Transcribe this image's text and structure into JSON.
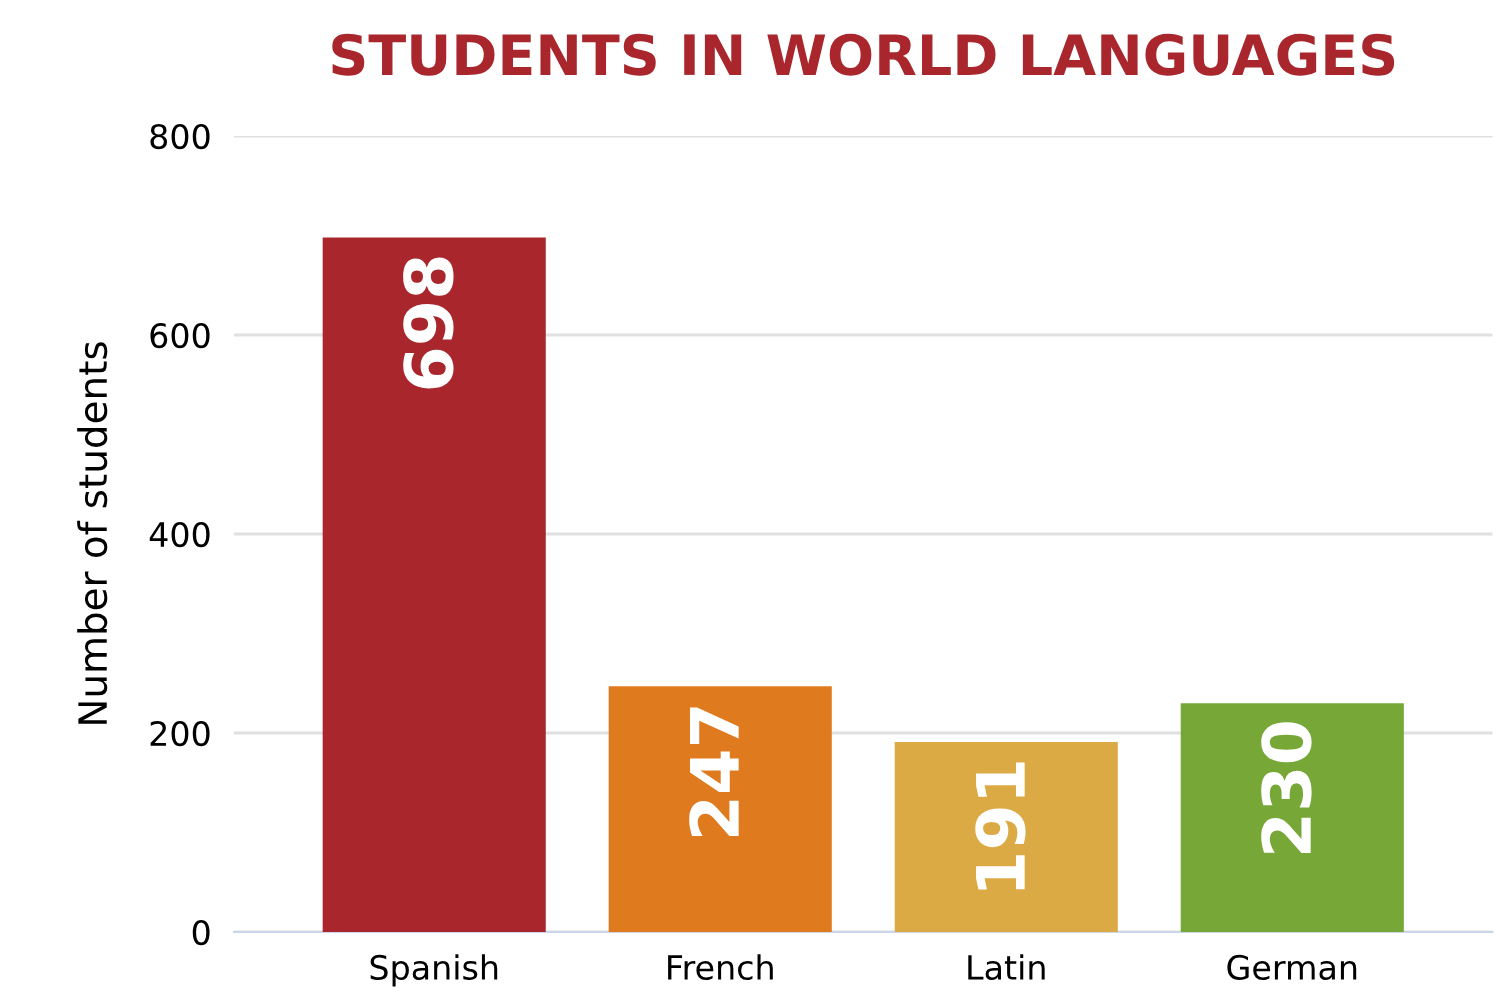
{
  "chart_data": {
    "type": "bar",
    "title": "STUDENTS IN WORLD LANGUAGES",
    "ylabel": "Number of students",
    "categories": [
      "Spanish",
      "French",
      "Latin",
      "German"
    ],
    "values": [
      698,
      247,
      191,
      230
    ],
    "colors": [
      "#a8262c",
      "#e07a1f",
      "#dcaa45",
      "#76a737"
    ],
    "ylim": [
      0,
      800
    ],
    "yticks": [
      0,
      200,
      400,
      600,
      800
    ],
    "grid": "y",
    "data_labels": true,
    "legend": false
  }
}
